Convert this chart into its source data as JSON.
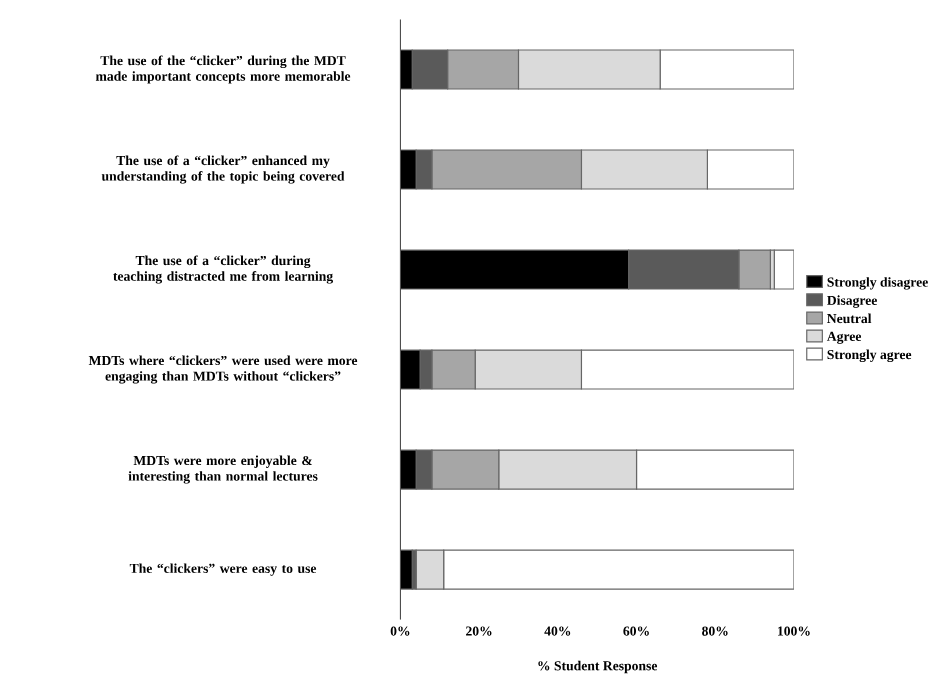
{
  "chart_data": {
    "type": "bar",
    "orientation": "horizontal",
    "stacked": true,
    "xlabel": "% Student Response",
    "categories": [
      "The use of the “clicker” during the MDT made important concepts more memorable",
      "The use of a “clicker” enhanced my understanding of the topic being covered",
      "The use of a “clicker” during teaching distracted me from learning",
      "MDTs where “clickers” were used were more engaging than MDTs without “clickers”",
      "MDTs were more enjoyable & interesting than normal lectures",
      "The “clickers” were easy to use"
    ],
    "series": [
      {
        "name": "Strongly disagree",
        "color": "#000000",
        "values": [
          3,
          4,
          58,
          5,
          4,
          3
        ]
      },
      {
        "name": "Disagree",
        "color": "#5a5a5a",
        "values": [
          9,
          4,
          28,
          3,
          4,
          1
        ]
      },
      {
        "name": "Neutral",
        "color": "#a6a6a6",
        "values": [
          18,
          38,
          8,
          11,
          17,
          0
        ]
      },
      {
        "name": "Agree",
        "color": "#dadada",
        "values": [
          36,
          32,
          1,
          27,
          35,
          7
        ]
      },
      {
        "name": "Strongly agree",
        "color": "#ffffff",
        "values": [
          34,
          22,
          5,
          54,
          40,
          89
        ]
      }
    ],
    "xlim": [
      0,
      100
    ],
    "xticks": [
      {
        "value": 0,
        "label": "0%"
      },
      {
        "value": 20,
        "label": "20%"
      },
      {
        "value": 40,
        "label": "40%"
      },
      {
        "value": 60,
        "label": "60%"
      },
      {
        "value": 80,
        "label": "80%"
      },
      {
        "value": 100,
        "label": "100%"
      }
    ],
    "legend": "right"
  }
}
